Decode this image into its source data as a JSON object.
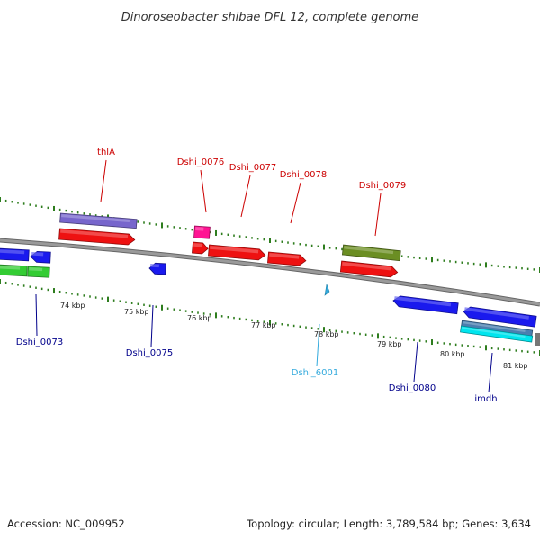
{
  "title": "Dinoroseobacter shibae DFL 12, complete genome",
  "footer": {
    "accession": "Accession: NC_009952",
    "summary": "Topology: circular; Length: 3,789,584 bp; Genes: 3,634"
  },
  "scale_labels": [
    "74 kbp",
    "75 kbp",
    "76 kbp",
    "77 kbp",
    "78 kbp",
    "79 kbp",
    "80 kbp",
    "81 kbp"
  ],
  "colors": {
    "backbone": "#888888",
    "tick": "#2e7d1e",
    "forward_label": "#cc0000",
    "reverse_label": "#00008b",
    "rna_label": "#33aadd",
    "cds": "#ee1111",
    "reverse_cds": "#1a1aee",
    "gene": "#33cc33",
    "operon": "#7766cc",
    "misc": "#6b8e23",
    "rna": "#ff1493",
    "cyan": "#00e5ee",
    "steel": "#4a7fb0"
  },
  "features": [
    {
      "label": "thlA",
      "strand": "forward",
      "type": "operon"
    },
    {
      "label": "Dshi_0076",
      "strand": "forward",
      "type": "rna"
    },
    {
      "label": "Dshi_0077",
      "strand": "forward",
      "type": "cds"
    },
    {
      "label": "Dshi_0078",
      "strand": "forward",
      "type": "cds"
    },
    {
      "label": "Dshi_0079",
      "strand": "forward",
      "type": "misc"
    },
    {
      "label": "Dshi_0073",
      "strand": "reverse",
      "type": "cds"
    },
    {
      "label": "Dshi_0075",
      "strand": "reverse",
      "type": "cds"
    },
    {
      "label": "Dshi_6001",
      "strand": "reverse",
      "type": "rna"
    },
    {
      "label": "Dshi_0080",
      "strand": "reverse",
      "type": "cds"
    },
    {
      "label": "imdh",
      "strand": "reverse",
      "type": "cds"
    }
  ]
}
